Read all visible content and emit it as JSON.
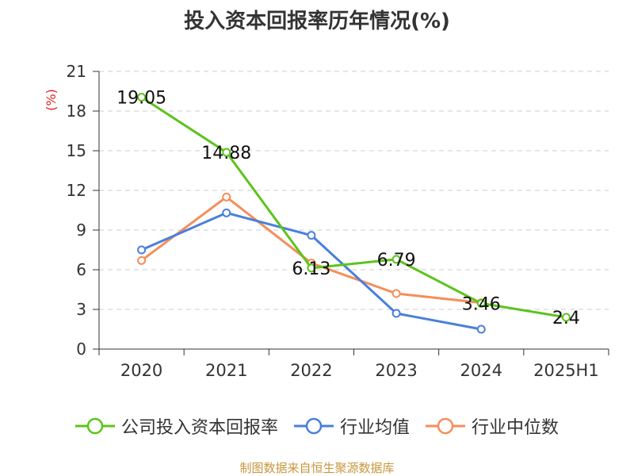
{
  "chart_data": {
    "type": "line",
    "title": "投入资本回报率历年情况(%)",
    "ylabel": "(%)",
    "xlabel": "",
    "categories": [
      "2020",
      "2021",
      "2022",
      "2023",
      "2024",
      "2025H1"
    ],
    "ylim": [
      0,
      21
    ],
    "yticks": [
      0,
      3,
      6,
      9,
      12,
      15,
      18,
      21
    ],
    "grid": "horizontal-dashed",
    "legend_position": "bottom",
    "series": [
      {
        "name": "公司投入资本回报率",
        "color": "#5cc41b",
        "values": [
          19.05,
          14.88,
          6.13,
          6.79,
          3.46,
          2.4
        ],
        "data_labels": [
          "19.05",
          "14.88",
          "6.13",
          "6.79",
          "3.46",
          "2.4"
        ]
      },
      {
        "name": "行业均值",
        "color": "#4a7fdc",
        "values": [
          7.5,
          10.3,
          8.6,
          2.7,
          1.5,
          null
        ],
        "data_labels": []
      },
      {
        "name": "行业中位数",
        "color": "#f58e5a",
        "values": [
          6.7,
          11.5,
          6.5,
          4.2,
          3.5,
          null
        ],
        "data_labels": []
      }
    ]
  },
  "source_note": "制图数据来自恒生聚源数据库",
  "colors": {
    "axis": "#333333",
    "grid": "#cccccc",
    "ylabel": "#e02020",
    "source": "#c8963c"
  }
}
